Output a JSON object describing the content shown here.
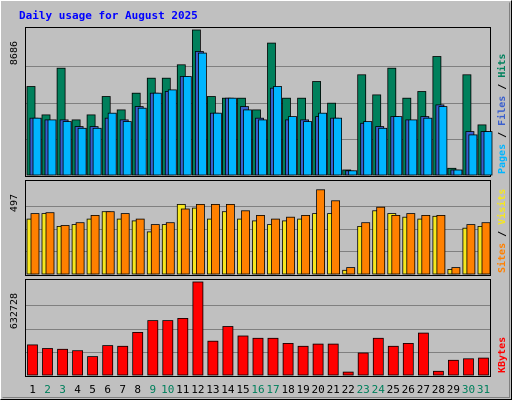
{
  "chart_data": {
    "type": "bar",
    "title": "Daily usage for August 2025",
    "days": [
      "1",
      "2",
      "3",
      "4",
      "5",
      "6",
      "7",
      "8",
      "9",
      "10",
      "11",
      "12",
      "13",
      "14",
      "15",
      "16",
      "17",
      "18",
      "19",
      "20",
      "21",
      "22",
      "23",
      "24",
      "25",
      "26",
      "27",
      "28",
      "29",
      "30",
      "31"
    ],
    "weekend_days": [
      "2",
      "3",
      "9",
      "10",
      "16",
      "17",
      "23",
      "24",
      "30",
      "31"
    ],
    "panels": [
      {
        "label": "8686",
        "ymax": 8686,
        "legend": [
          {
            "text": "Pages",
            "color": "#00b5ff"
          },
          {
            "text": "Files",
            "color": "#3a5fcd"
          },
          {
            "text": "Hits",
            "color": "#00805c"
          }
        ],
        "series": [
          {
            "name": "Hits",
            "color": "#00805c",
            "values": [
              5300,
              3600,
              6400,
              3300,
              3600,
              4700,
              3900,
              4900,
              5800,
              5800,
              6600,
              8686,
              4700,
              4600,
              4600,
              3900,
              7900,
              4600,
              4600,
              5600,
              4300,
              300,
              6000,
              4800,
              6400,
              4600,
              5000,
              7100,
              400,
              6000,
              3000
            ]
          },
          {
            "name": "Files",
            "color": "#3a5fcd",
            "values": [
              3400,
              3300,
              3300,
              2900,
              2900,
              3400,
              3300,
              4100,
              4900,
              5000,
              5900,
              7400,
              3700,
              4600,
              4100,
              3400,
              5200,
              3300,
              3300,
              3500,
              3400,
              250,
              3100,
              2900,
              3500,
              3300,
              3500,
              4200,
              300,
              2600,
              2600
            ]
          },
          {
            "name": "Pages",
            "color": "#00b5ff",
            "values": [
              3400,
              3300,
              3200,
              2800,
              2800,
              3700,
              3200,
              4000,
              4900,
              5100,
              5900,
              7300,
              3700,
              4600,
              3900,
              3300,
              5300,
              3500,
              3200,
              3700,
              3400,
              250,
              3200,
              2800,
              3500,
              3300,
              3400,
              4100,
              300,
              2400,
              2600
            ]
          }
        ]
      },
      {
        "label": "497",
        "ymax": 497,
        "legend": [
          {
            "text": "Sites",
            "color": "#ff8000"
          },
          {
            "text": "Visits",
            "color": "#f6e71e"
          }
        ],
        "series": [
          {
            "name": "Visits",
            "color": "#f6e71e",
            "values": [
              300,
              330,
              260,
              270,
              300,
              340,
              300,
              290,
              230,
              270,
              380,
              360,
              300,
              340,
              300,
              290,
              270,
              290,
              300,
              330,
              330,
              20,
              260,
              345,
              330,
              310,
              300,
              315,
              25,
              250,
              260
            ]
          },
          {
            "name": "Sites",
            "color": "#ff8000",
            "values": [
              330,
              335,
              265,
              280,
              320,
              340,
              330,
              300,
              270,
              280,
              355,
              380,
              380,
              380,
              345,
              320,
              300,
              310,
              320,
              460,
              400,
              35,
              280,
              365,
              320,
              330,
              320,
              320,
              35,
              270,
              280
            ]
          }
        ]
      },
      {
        "label": "632728",
        "ymax": 632728,
        "legend": [
          {
            "text": "KBytes",
            "color": "#ff0000"
          }
        ],
        "series": [
          {
            "name": "KBytes",
            "color": "#ff0000",
            "values": [
              205000,
              180000,
              175000,
              165000,
              125000,
              200000,
              195000,
              290000,
              370000,
              370000,
              385000,
              632728,
              230000,
              330000,
              265000,
              250000,
              250000,
              215000,
              195000,
              210000,
              210000,
              20000,
              150000,
              250000,
              195000,
              215000,
              285000,
              25000,
              100000,
              110000,
              115000
            ]
          }
        ]
      }
    ]
  }
}
